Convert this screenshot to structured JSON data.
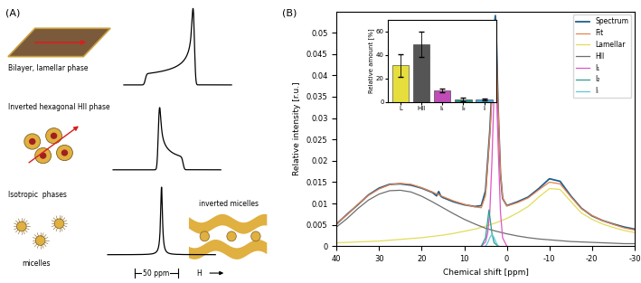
{
  "panel_a": {
    "label": "(A)",
    "phases": [
      {
        "label": "Bilayer, lamellar phase"
      },
      {
        "label": "Inverted hexagonal HII phase"
      },
      {
        "label": "Isotropic  phases"
      }
    ],
    "micelles": "micelles",
    "inverted_micelles": "inverted micelles",
    "scale_bar": "50 ppm",
    "field": "H"
  },
  "panel_b": {
    "label": "(B)"
  },
  "chart_data": [
    {
      "type": "line",
      "xlabel": "Chemical shift [ppm]",
      "ylabel": "Relative intensity [r.u.]",
      "xlim": [
        40,
        -30
      ],
      "xticks": [
        40,
        30,
        20,
        10,
        0,
        -10,
        -20,
        -30
      ],
      "ylim": [
        0,
        0.055
      ],
      "yticks": [
        0,
        0.005,
        0.01,
        0.015,
        0.02,
        0.025,
        0.03,
        0.035,
        0.04,
        0.045,
        0.05
      ],
      "legend": "upper right",
      "grid": false,
      "series": [
        {
          "name": "Spectrum",
          "color": "#1f5f8b",
          "x": [
            40,
            37.5,
            35,
            32.5,
            30,
            27.5,
            25,
            22.5,
            20,
            17.5,
            16.5,
            16,
            15.5,
            15,
            12.5,
            10,
            7.5,
            6,
            5,
            4.5,
            4,
            3.5,
            3,
            2.7,
            2.5,
            2,
            1.5,
            1,
            0,
            -2.5,
            -5,
            -7.5,
            -10,
            -12.5,
            -15,
            -17.5,
            -20,
            -22.5,
            -25,
            -27.5,
            -30
          ],
          "values": [
            0.0052,
            0.0075,
            0.0097,
            0.012,
            0.0136,
            0.0145,
            0.0146,
            0.0143,
            0.0136,
            0.0126,
            0.0118,
            0.0128,
            0.0117,
            0.0114,
            0.0104,
            0.0097,
            0.0093,
            0.0095,
            0.013,
            0.02,
            0.027,
            0.037,
            0.051,
            0.054,
            0.05,
            0.031,
            0.017,
            0.0112,
            0.0095,
            0.0104,
            0.0115,
            0.0135,
            0.0158,
            0.0152,
            0.0118,
            0.0089,
            0.0071,
            0.006,
            0.0052,
            0.0045,
            0.004
          ]
        },
        {
          "name": "Fit",
          "color": "#e8804a",
          "x": [
            40,
            37.5,
            35,
            32.5,
            30,
            27.5,
            25,
            22.5,
            20,
            17.5,
            15,
            12.5,
            10,
            7.5,
            6,
            5,
            4.5,
            4,
            3.5,
            3,
            2.7,
            2.5,
            2,
            1.5,
            1,
            0,
            -2.5,
            -5,
            -7.5,
            -10,
            -12.5,
            -15,
            -17.5,
            -20,
            -22.5,
            -25,
            -27.5,
            -30
          ],
          "values": [
            0.0053,
            0.0074,
            0.0098,
            0.0119,
            0.0134,
            0.0144,
            0.0147,
            0.0145,
            0.0137,
            0.0127,
            0.0116,
            0.0106,
            0.0098,
            0.0092,
            0.009,
            0.0119,
            0.0187,
            0.0259,
            0.0348,
            0.0478,
            0.0507,
            0.048,
            0.0311,
            0.0172,
            0.0113,
            0.0094,
            0.0102,
            0.0113,
            0.0132,
            0.015,
            0.0146,
            0.0116,
            0.0088,
            0.0072,
            0.006,
            0.0051,
            0.0043,
            0.0038
          ]
        },
        {
          "name": "Lamellar",
          "color": "#e3dc5a",
          "x": [
            40,
            37.5,
            35,
            32.5,
            30,
            27.5,
            25,
            22.5,
            20,
            17.5,
            15,
            12.5,
            10,
            7.5,
            5,
            2.5,
            0,
            -2.5,
            -5,
            -7.5,
            -10,
            -12.5,
            -15,
            -17.5,
            -20,
            -22.5,
            -25,
            -27.5,
            -30
          ],
          "values": [
            0.0008,
            0.0009,
            0.001,
            0.0011,
            0.0012,
            0.0014,
            0.0016,
            0.0018,
            0.002,
            0.0023,
            0.0026,
            0.003,
            0.0035,
            0.004,
            0.0047,
            0.0055,
            0.0065,
            0.0078,
            0.0093,
            0.0115,
            0.0135,
            0.0133,
            0.0105,
            0.0078,
            0.0063,
            0.0052,
            0.0044,
            0.0037,
            0.0032
          ]
        },
        {
          "name": "HII",
          "color": "#6e6e6e",
          "x": [
            40,
            37.5,
            35,
            32.5,
            30,
            27.5,
            25,
            22.5,
            20,
            17.5,
            15,
            12.5,
            10,
            7.5,
            5,
            2.5,
            0,
            -2.5,
            -5,
            -7.5,
            -10,
            -12.5,
            -15,
            -17.5,
            -20,
            -22.5,
            -25,
            -27.5,
            -30
          ],
          "values": [
            0.0045,
            0.0065,
            0.0088,
            0.0108,
            0.0122,
            0.013,
            0.0131,
            0.0127,
            0.0117,
            0.0104,
            0.009,
            0.0076,
            0.0063,
            0.0052,
            0.0042,
            0.0035,
            0.0029,
            0.0024,
            0.002,
            0.0017,
            0.0015,
            0.0013,
            0.0011,
            0.001,
            0.0009,
            0.0008,
            0.0007,
            0.0006,
            0.0006
          ]
        },
        {
          "name": "I₁",
          "color": "#e055c8",
          "x": [
            6,
            5,
            4.5,
            4,
            3.5,
            3,
            2.7,
            2.5,
            2,
            1.5,
            1,
            0
          ],
          "values": [
            0,
            0.001,
            0.003,
            0.008,
            0.02,
            0.036,
            0.04,
            0.038,
            0.022,
            0.008,
            0.002,
            0
          ]
        },
        {
          "name": "I₂",
          "color": "#2a9d8f",
          "x": [
            6,
            5,
            4.5,
            4.2,
            4,
            3.5,
            3,
            2
          ],
          "values": [
            0,
            0.002,
            0.006,
            0.0085,
            0.007,
            0.003,
            0.0008,
            0
          ]
        },
        {
          "name": "Iᵢ",
          "color": "#5bc8e0",
          "x": [
            5,
            4.5,
            4,
            3.5,
            3,
            2.5,
            2
          ],
          "values": [
            0,
            0.0008,
            0.002,
            0.0028,
            0.002,
            0.0008,
            0
          ]
        }
      ]
    },
    {
      "type": "bar",
      "ylabel": "Relative amount [%]",
      "categories": [
        "L",
        "HII",
        "I₁",
        "I₂",
        "Iᵢ"
      ],
      "values": [
        31,
        49,
        10,
        2,
        2
      ],
      "errors": [
        10,
        11,
        1.5,
        1.5,
        1
      ],
      "colors": [
        "#e6de3c",
        "#555555",
        "#c04cb8",
        "#2a8a7a",
        "#4aa8d8"
      ],
      "ylim": [
        0,
        70
      ],
      "yticks": [
        0,
        20,
        40,
        60
      ]
    }
  ]
}
